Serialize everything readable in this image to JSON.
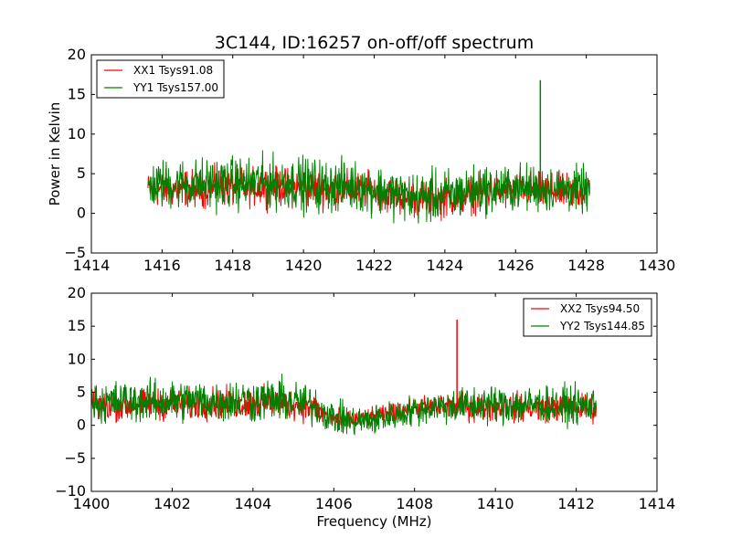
{
  "chart_data": [
    {
      "type": "line",
      "title": "3C144, ID:16257 on-off/off spectrum",
      "xlabel": "",
      "ylabel": "Power in Kelvin",
      "xlim": [
        1414,
        1430
      ],
      "ylim": [
        -5,
        20
      ],
      "xticks": [
        1414,
        1416,
        1418,
        1420,
        1422,
        1424,
        1426,
        1428,
        1430
      ],
      "yticks": [
        -5,
        0,
        5,
        10,
        15,
        20
      ],
      "legend_position": "top-left",
      "grid": false,
      "series": [
        {
          "name": "XX1 Tsys91.08",
          "color": "#ff0000",
          "x": [
            1415.6,
            1416.0,
            1416.5,
            1417.0,
            1417.5,
            1418.0,
            1418.5,
            1419.0,
            1419.5,
            1420.0,
            1420.5,
            1421.0,
            1421.5,
            1422.0,
            1422.5,
            1423.0,
            1423.5,
            1424.0,
            1424.5,
            1425.0,
            1425.5,
            1426.0,
            1426.5,
            1427.0,
            1427.5,
            1428.1
          ],
          "y": [
            3.0,
            3.1,
            3.2,
            3.1,
            3.3,
            3.4,
            3.3,
            3.4,
            3.3,
            3.2,
            3.0,
            3.1,
            3.0,
            2.8,
            2.3,
            1.9,
            1.8,
            1.9,
            2.2,
            2.6,
            2.7,
            2.8,
            2.9,
            2.8,
            2.7,
            2.8
          ],
          "spread": [
            3.0,
            3.4,
            3.5,
            3.4,
            3.5,
            3.6,
            3.5,
            3.6,
            3.5,
            3.6,
            3.5,
            3.4,
            3.4,
            3.3,
            3.3,
            3.4,
            3.5,
            3.6,
            3.5,
            3.4,
            3.4,
            3.3,
            3.4,
            3.3,
            3.3,
            3.3
          ]
        },
        {
          "name": "YY1 Tsys157.00",
          "color": "#008000",
          "x": [
            1415.6,
            1416.0,
            1416.5,
            1417.0,
            1417.5,
            1418.0,
            1418.5,
            1419.0,
            1419.5,
            1420.0,
            1420.5,
            1421.0,
            1421.5,
            1422.0,
            1422.5,
            1423.0,
            1423.5,
            1424.0,
            1424.5,
            1425.0,
            1425.5,
            1426.0,
            1426.5,
            1427.0,
            1427.5,
            1428.1
          ],
          "y": [
            3.5,
            3.6,
            3.7,
            3.7,
            3.8,
            3.8,
            3.8,
            3.9,
            3.8,
            3.7,
            3.5,
            3.5,
            3.4,
            3.1,
            2.6,
            2.1,
            2.0,
            2.2,
            2.6,
            3.0,
            3.1,
            3.2,
            3.2,
            3.1,
            3.0,
            3.0
          ],
          "spread": [
            4.0,
            4.6,
            4.7,
            4.6,
            4.8,
            4.8,
            4.7,
            4.9,
            4.8,
            5.0,
            4.9,
            4.7,
            4.6,
            4.5,
            4.5,
            4.6,
            4.8,
            4.9,
            4.7,
            4.5,
            4.4,
            4.3,
            4.4,
            4.3,
            4.2,
            4.2
          ],
          "spike": {
            "x": 1426.7,
            "y": 16.8
          }
        }
      ]
    },
    {
      "type": "line",
      "title": "",
      "xlabel": "Frequency (MHz)",
      "ylabel": "",
      "xlim": [
        1400,
        1414
      ],
      "ylim": [
        -10,
        20
      ],
      "xticks": [
        1400,
        1402,
        1404,
        1406,
        1408,
        1410,
        1412,
        1414
      ],
      "yticks": [
        -10,
        -5,
        0,
        5,
        10,
        15,
        20
      ],
      "legend_position": "top-right",
      "grid": false,
      "series": [
        {
          "name": "XX2 Tsys94.50",
          "color": "#ff0000",
          "x": [
            1400.0,
            1400.5,
            1401.0,
            1401.5,
            1402.0,
            1402.5,
            1403.0,
            1403.5,
            1404.0,
            1404.5,
            1405.0,
            1405.5,
            1406.0,
            1406.5,
            1407.0,
            1407.5,
            1408.0,
            1408.5,
            1409.0,
            1409.5,
            1410.0,
            1410.5,
            1411.0,
            1411.5,
            1412.0,
            1412.5
          ],
          "y": [
            3.0,
            3.0,
            3.1,
            3.1,
            3.2,
            3.2,
            3.3,
            3.3,
            3.3,
            3.4,
            3.2,
            2.6,
            1.0,
            0.8,
            1.3,
            2.0,
            2.6,
            2.8,
            2.8,
            2.8,
            2.8,
            2.7,
            2.7,
            2.7,
            2.7,
            2.7
          ],
          "spread": [
            3.3,
            3.4,
            3.4,
            3.4,
            3.5,
            3.5,
            3.5,
            3.5,
            3.6,
            3.6,
            3.5,
            3.2,
            2.6,
            2.1,
            1.9,
            2.0,
            2.3,
            2.6,
            3.0,
            3.2,
            3.2,
            3.2,
            3.2,
            3.2,
            3.2,
            3.2
          ],
          "spike": {
            "x": 1409.05,
            "y": 16.0
          }
        },
        {
          "name": "YY2 Tsys144.85",
          "color": "#008000",
          "x": [
            1400.0,
            1400.5,
            1401.0,
            1401.5,
            1402.0,
            1402.5,
            1403.0,
            1403.5,
            1404.0,
            1404.5,
            1405.0,
            1405.5,
            1406.0,
            1406.5,
            1407.0,
            1407.5,
            1408.0,
            1408.5,
            1409.0,
            1409.5,
            1410.0,
            1410.5,
            1411.0,
            1411.5,
            1412.0,
            1412.5
          ],
          "y": [
            3.5,
            3.5,
            3.6,
            3.6,
            3.7,
            3.7,
            3.7,
            3.8,
            3.8,
            3.8,
            3.6,
            3.0,
            1.2,
            0.5,
            0.8,
            1.5,
            2.3,
            2.8,
            3.0,
            3.1,
            3.2,
            3.1,
            3.1,
            3.0,
            3.0,
            3.0
          ],
          "spread": [
            4.5,
            4.6,
            4.6,
            4.6,
            4.7,
            4.7,
            4.7,
            4.8,
            4.8,
            4.9,
            4.8,
            4.3,
            3.6,
            3.5,
            3.4,
            3.3,
            3.4,
            3.6,
            4.0,
            4.2,
            4.3,
            4.2,
            4.2,
            4.1,
            4.1,
            4.0
          ]
        }
      ]
    }
  ]
}
